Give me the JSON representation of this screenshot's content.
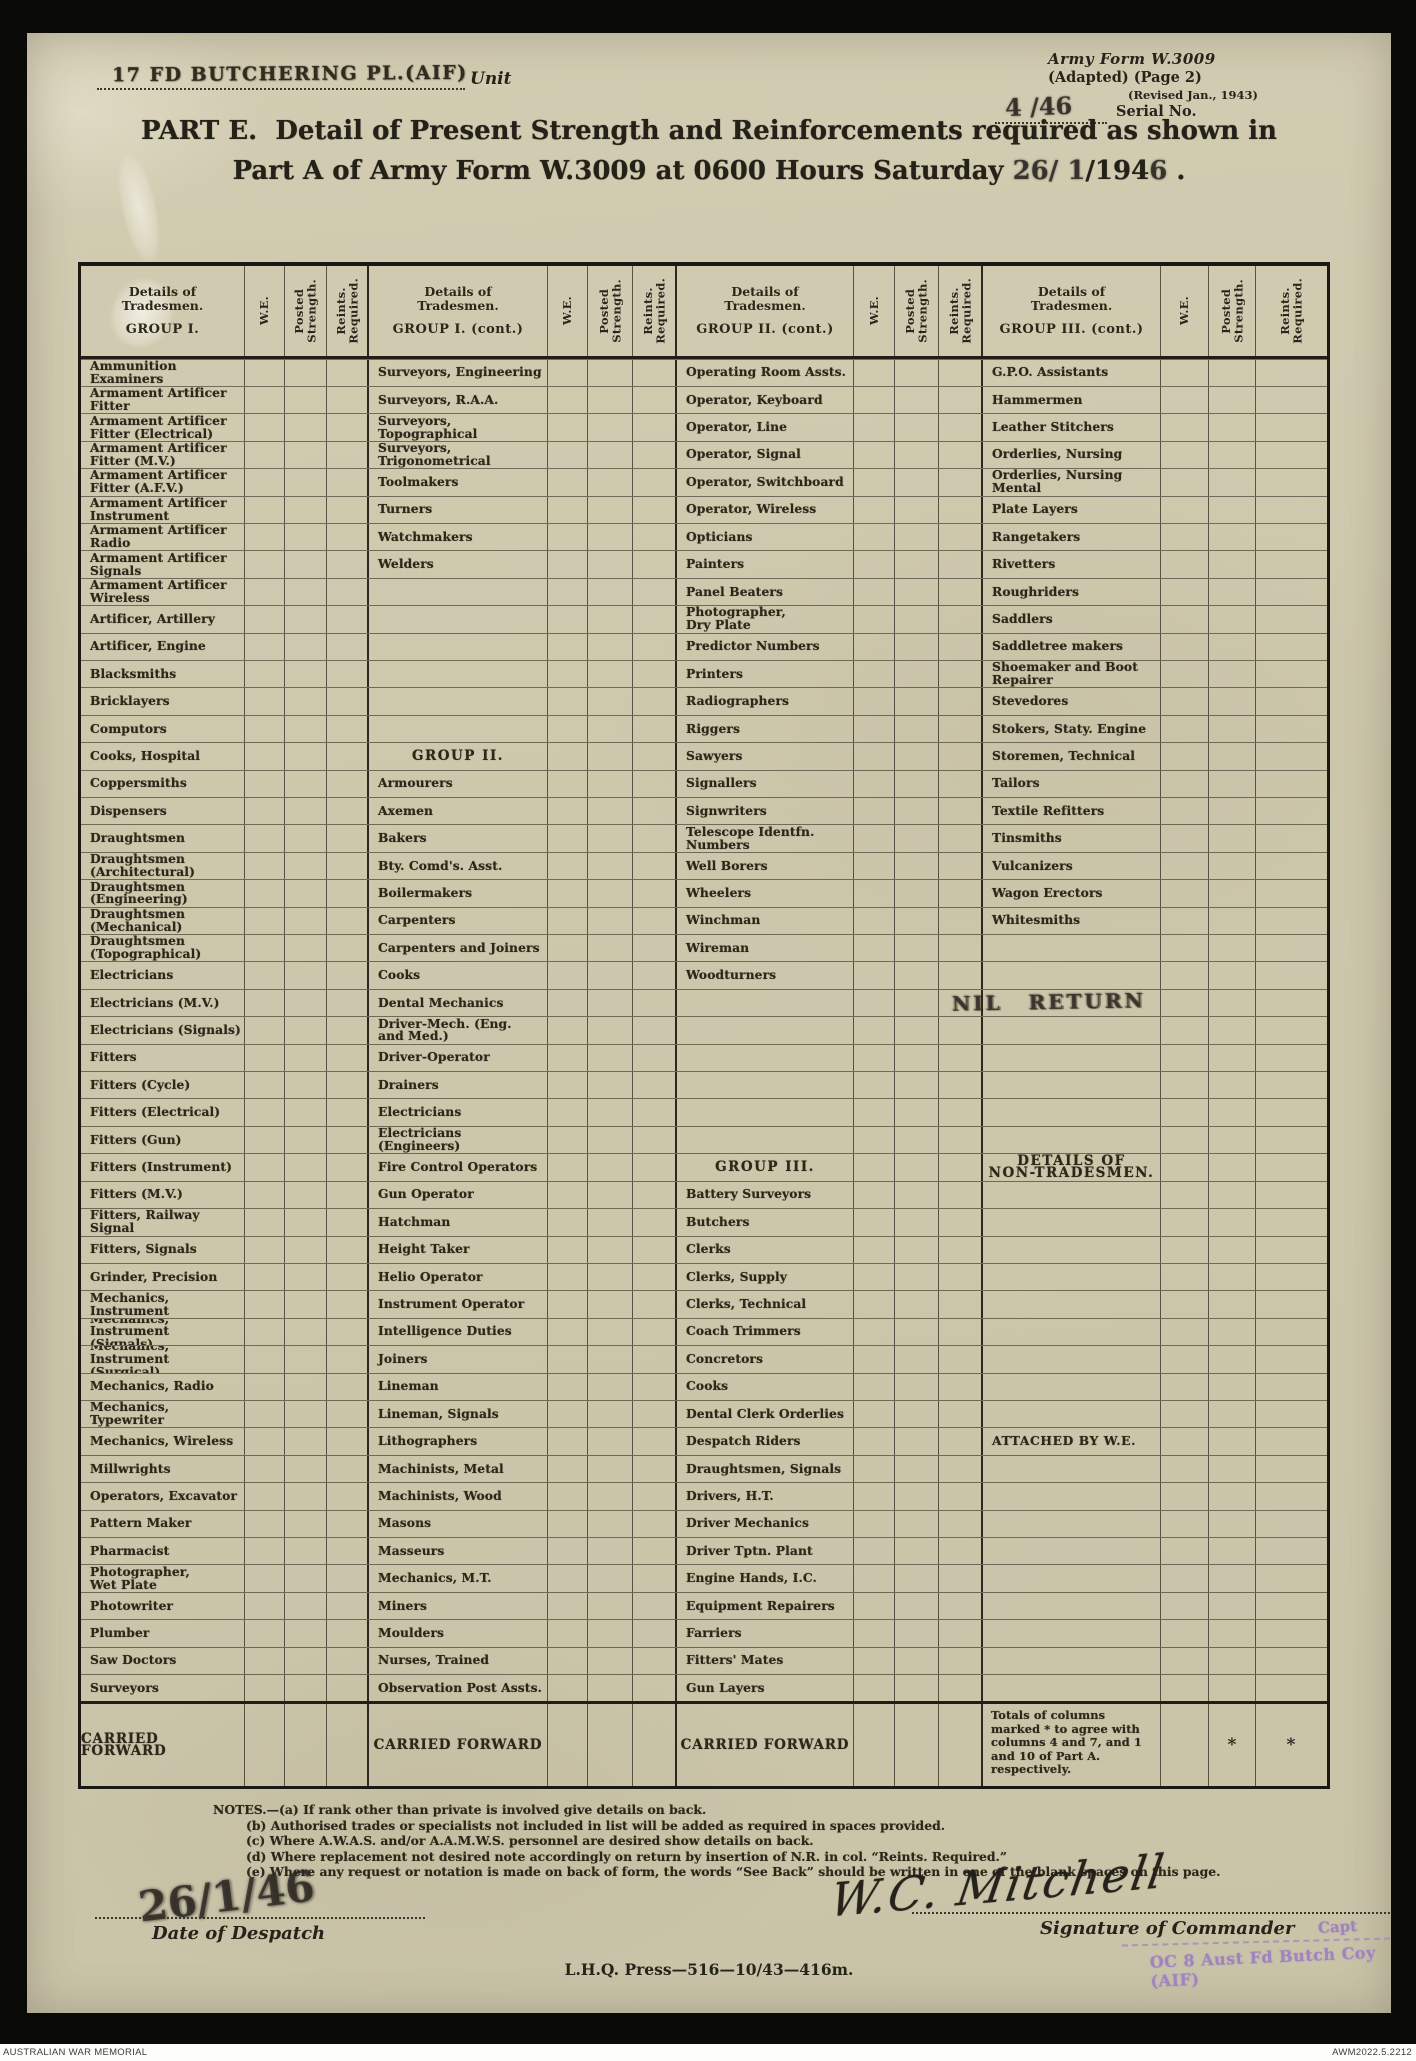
{
  "header": {
    "unit_value": "17 FD BUTCHERING PL.(AIF)",
    "unit_label": "Unit",
    "form_line1": "Army Form W.3009",
    "form_line2": "(Adapted)  (Page 2)",
    "form_line3": "(Revised Jan., 1943)",
    "serial_value": "4 /46",
    "serial_label": "Serial No.",
    "title_part": "PART E.",
    "title_line1": "Detail of Present Strength and Reinforcements required as shown in",
    "title_line2": "Part A of Army Form W.3009 at 0600 Hours Saturday",
    "title_date_hand1": "26/ 1",
    "title_date_print": "/194",
    "title_date_hand2": "6",
    "title_end": "."
  },
  "table": {
    "col_headers": {
      "details": "Details of Tradesmen.",
      "we": "W.E.",
      "posted": "Posted\nStrength.",
      "reints": "Reints.\nRequired."
    },
    "group_titles": [
      "GROUP I.",
      "GROUP I. (cont.)",
      "GROUP II. (cont.)",
      "GROUP III. (cont.)"
    ],
    "carried_forward": "CARRIED FORWARD",
    "totals_note": "Totals of columns marked  *  to agree with columns 4 and 7, and 1 and 10 of Part A.  respectively.",
    "asterisk": "*",
    "groups": [
      {
        "rows": [
          "Ammunition Examiners",
          "Armament  Artificer\nFitter",
          "Armament  Artificer\nFitter  (Electrical)",
          "Armament  Artificer\nFitter  (M.V.)",
          "Armament  Artificer\nFitter  (A.F.V.)",
          "Armament  Artificer\nInstrument",
          "Armament  Artificer\nRadio",
          "Armament  Artificer\nSignals",
          "Armament  Artificer\nWireless",
          "Artificer,  Artillery",
          "Artificer,  Engine",
          "Blacksmiths",
          "Bricklayers",
          "Computors",
          "Cooks,  Hospital",
          "Coppersmiths",
          "Dispensers",
          "Draughtsmen",
          "Draughtsmen\n(Architectural)",
          "Draughtsmen\n(Engineering)",
          "Draughtsmen\n(Mechanical)",
          "Draughtsmen\n(Topographical)",
          "Electricians",
          "Electricians  (M.V.)",
          "Electricians  (Signals)",
          "Fitters",
          "Fitters  (Cycle)",
          "Fitters  (Electrical)",
          "Fitters  (Gun)",
          "Fitters  (Instrument)",
          "Fitters  (M.V.)",
          "Fitters,  Railway\nSignal",
          "Fitters,  Signals",
          "Grinder,  Precision",
          "Mechanics, Instrument",
          "Mechanics, Instrument\n(Signals)",
          "Mechanics, Instrument\n(Surgical)",
          "Mechanics,  Radio",
          "Mechanics,  Typewriter",
          "Mechanics,  Wireless",
          "Millwrights",
          "Operators,  Excavator",
          "Pattern   Maker",
          "Pharmacist",
          "Photographer,\nWet Plate",
          "Photowriter",
          "Plumber",
          "Saw Doctors",
          "Surveyors"
        ]
      },
      {
        "rows": [
          "Surveyors, Engineering",
          "Surveyors, R.A.A.",
          "Surveyors,\nTopographical",
          "Surveyors,\nTrigonometrical",
          "Toolmakers",
          "Turners",
          "Watchmakers",
          "Welders",
          "",
          "",
          "",
          "",
          "",
          "",
          "#GROUP  II.",
          "Armourers",
          "Axemen",
          "Bakers",
          "Bty. Comd's. Asst.",
          "Boilermakers",
          "Carpenters",
          "Carpenters and Joiners",
          "Cooks",
          "Dental Mechanics",
          "Driver-Mech. (Eng.\nand Med.)",
          "Driver-Operator",
          "Drainers",
          "Electricians",
          "Electricians\n(Engineers)",
          "Fire Control Operators",
          "Gun Operator",
          "Hatchman",
          "Height Taker",
          "Helio Operator",
          "Instrument Operator",
          "Intelligence Duties",
          "Joiners",
          "Lineman",
          "Lineman, Signals",
          "Lithographers",
          "Machinists, Metal",
          "Machinists, Wood",
          "Masons",
          "Masseurs",
          "Mechanics, M.T.",
          "Miners",
          "Moulders",
          "Nurses, Trained",
          "Observation Post Assts."
        ]
      },
      {
        "rows": [
          "Operating Room Assts.",
          "Operator, Keyboard",
          "Operator, Line",
          "Operator, Signal",
          "Operator, Switchboard",
          "Operator, Wireless",
          "Opticians",
          "Painters",
          "Panel Beaters",
          "Photographer,\nDry Plate",
          "Predictor Numbers",
          "Printers",
          "Radiographers",
          "Riggers",
          "Sawyers",
          "Signallers",
          "Signwriters",
          "Telescope Identfn.\nNumbers",
          "Well Borers",
          "Wheelers",
          "Winchman",
          "Wireman",
          "Woodturners",
          "",
          "",
          "",
          "",
          "",
          "",
          "#GROUP  III.",
          "Battery Surveyors",
          "Butchers",
          "Clerks",
          "Clerks, Supply",
          "Clerks, Technical",
          "Coach Trimmers",
          "Concretors",
          "Cooks",
          "Dental Clerk Orderlies",
          "Despatch Riders",
          "Draughtsmen, Signals",
          "Drivers, H.T.",
          "Driver Mechanics",
          "Driver Tptn. Plant",
          "Engine Hands, I.C.",
          "Equipment Repairers",
          "Farriers",
          "Fitters' Mates",
          "Gun Layers"
        ]
      },
      {
        "rows": [
          "G.P.O. Assistants",
          "Hammermen",
          "Leather Stitchers",
          "Orderlies, Nursing",
          "Orderlies, Nursing\nMental",
          "Plate Layers",
          "Rangetakers",
          "Rivetters",
          "Roughriders",
          "Saddlers",
          "Saddletree makers",
          "Shoemaker and Boot\nRepairer",
          "Stevedores",
          "Stokers, Staty. Engine",
          "Storemen, Technical",
          "Tailors",
          "Textile Refitters",
          "Tinsmiths",
          "Vulcanizers",
          "Wagon Erectors",
          "Whitesmiths",
          "",
          "",
          "",
          "",
          "",
          "",
          "",
          "",
          "#DETAILS  OF\nNON-TRADESMEN.",
          "",
          "",
          "",
          "",
          "",
          "",
          "",
          "",
          "",
          "!ATTACHED  BY  W.E.",
          "",
          "",
          "",
          "",
          "",
          "",
          "",
          "",
          ""
        ]
      }
    ]
  },
  "stamps": {
    "nil_return": "NIL  RETURN",
    "capt": "Capt",
    "oc_unit": "OC 8 Aust Fd Butch Coy (AIF)"
  },
  "notes": {
    "label": "NOTES.—",
    "items": [
      "(a) If rank other than private is involved give details on  back.",
      "(b) Authorised trades or specialists not included in list will be added as required in spaces provided.",
      "(c) Where A.W.A.S. and/or A.A.M.W.S. personnel are desired show details on back.",
      "(d) Where replacement not desired note accordingly on return by insertion of N.R. in col. “Reints. Required.”",
      "(e) Where any request or notation is made on back of form, the words “See Back” should be written in one of the blank spaces on this page."
    ]
  },
  "footer": {
    "date_value": "26/1/46",
    "date_label": "Date of Despatch",
    "signature": "W.C. Mitchell",
    "signature_label": "Signature of Commander",
    "press": "L.H.Q.  Press—516—10/43—416m."
  },
  "archive": {
    "left": "AUSTRALIAN WAR MEMORIAL",
    "right": "AWM2022.5.2212"
  }
}
